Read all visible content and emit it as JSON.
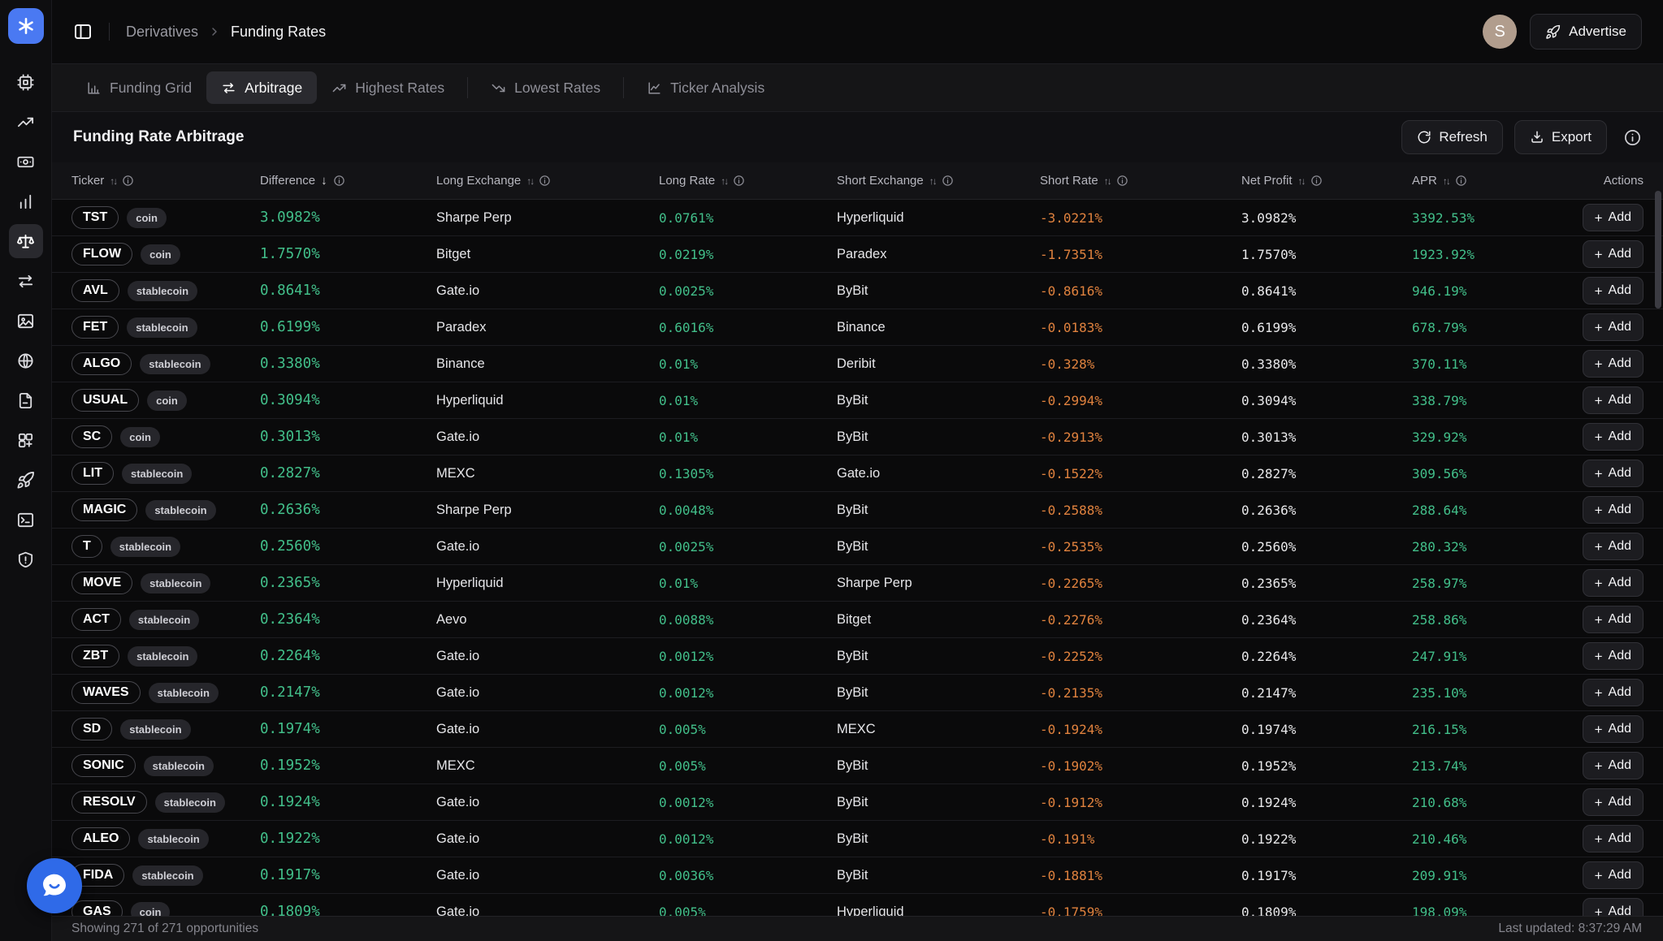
{
  "colors": {
    "accent_blue": "#4a79f2",
    "positive_green": "#42bf8a",
    "negative_orange": "#e0823e",
    "avatar_tan": "#b19d8d",
    "chat_blue": "#2f6ae8"
  },
  "header": {
    "breadcrumb": {
      "section": "Derivatives",
      "page": "Funding Rates"
    },
    "avatar_initial": "S",
    "advertise_label": "Advertise"
  },
  "sidebar": {
    "active": "scale-icon",
    "icons": [
      "cpu-icon",
      "trending-up-icon",
      "banknote-icon",
      "bar-chart-icon",
      "scale-icon",
      "swap-horizontal-icon",
      "image-icon",
      "globe-icon",
      "document-icon",
      "blocks-plus-icon",
      "rocket-icon",
      "terminal-icon",
      "shield-alert-icon"
    ]
  },
  "tabs": [
    {
      "label": "Funding Grid",
      "icon": "funding-grid-icon",
      "active": false,
      "divider_after": false
    },
    {
      "label": "Arbitrage",
      "icon": "arbitrage-swap-icon",
      "active": true,
      "divider_after": false
    },
    {
      "label": "Highest Rates",
      "icon": "trend-up-icon",
      "active": false,
      "divider_after": true
    },
    {
      "label": "Lowest Rates",
      "icon": "trend-down-icon",
      "active": false,
      "divider_after": true
    },
    {
      "label": "Ticker Analysis",
      "icon": "line-chart-icon",
      "active": false,
      "divider_after": false
    }
  ],
  "panel": {
    "title": "Funding Rate Arbitrage",
    "refresh_label": "Refresh",
    "export_label": "Export"
  },
  "table": {
    "columns": [
      {
        "label": "Ticker",
        "sort": "both",
        "info": true
      },
      {
        "label": "Difference",
        "sort": "desc",
        "info": true
      },
      {
        "label": "Long Exchange",
        "sort": "both",
        "info": true
      },
      {
        "label": "Long Rate",
        "sort": "both",
        "info": true
      },
      {
        "label": "Short Exchange",
        "sort": "both",
        "info": true
      },
      {
        "label": "Short Rate",
        "sort": "both",
        "info": true
      },
      {
        "label": "Net Profit",
        "sort": "both",
        "info": true
      },
      {
        "label": "APR",
        "sort": "both",
        "info": true
      },
      {
        "label": "Actions",
        "sort": "none",
        "info": false
      }
    ],
    "add_label": "Add",
    "rows": [
      {
        "ticker": "TST",
        "badge": "coin",
        "difference": "3.0982%",
        "long_exchange": "Sharpe Perp",
        "long_rate": "0.0761%",
        "short_exchange": "Hyperliquid",
        "short_rate": "-3.0221%",
        "net_profit": "3.0982%",
        "apr": "3392.53%"
      },
      {
        "ticker": "FLOW",
        "badge": "coin",
        "difference": "1.7570%",
        "long_exchange": "Bitget",
        "long_rate": "0.0219%",
        "short_exchange": "Paradex",
        "short_rate": "-1.7351%",
        "net_profit": "1.7570%",
        "apr": "1923.92%"
      },
      {
        "ticker": "AVL",
        "badge": "stablecoin",
        "difference": "0.8641%",
        "long_exchange": "Gate.io",
        "long_rate": "0.0025%",
        "short_exchange": "ByBit",
        "short_rate": "-0.8616%",
        "net_profit": "0.8641%",
        "apr": "946.19%"
      },
      {
        "ticker": "FET",
        "badge": "stablecoin",
        "difference": "0.6199%",
        "long_exchange": "Paradex",
        "long_rate": "0.6016%",
        "short_exchange": "Binance",
        "short_rate": "-0.0183%",
        "net_profit": "0.6199%",
        "apr": "678.79%"
      },
      {
        "ticker": "ALGO",
        "badge": "stablecoin",
        "difference": "0.3380%",
        "long_exchange": "Binance",
        "long_rate": "0.01%",
        "short_exchange": "Deribit",
        "short_rate": "-0.328%",
        "net_profit": "0.3380%",
        "apr": "370.11%"
      },
      {
        "ticker": "USUAL",
        "badge": "coin",
        "difference": "0.3094%",
        "long_exchange": "Hyperliquid",
        "long_rate": "0.01%",
        "short_exchange": "ByBit",
        "short_rate": "-0.2994%",
        "net_profit": "0.3094%",
        "apr": "338.79%"
      },
      {
        "ticker": "SC",
        "badge": "coin",
        "difference": "0.3013%",
        "long_exchange": "Gate.io",
        "long_rate": "0.01%",
        "short_exchange": "ByBit",
        "short_rate": "-0.2913%",
        "net_profit": "0.3013%",
        "apr": "329.92%"
      },
      {
        "ticker": "LIT",
        "badge": "stablecoin",
        "difference": "0.2827%",
        "long_exchange": "MEXC",
        "long_rate": "0.1305%",
        "short_exchange": "Gate.io",
        "short_rate": "-0.1522%",
        "net_profit": "0.2827%",
        "apr": "309.56%"
      },
      {
        "ticker": "MAGIC",
        "badge": "stablecoin",
        "difference": "0.2636%",
        "long_exchange": "Sharpe Perp",
        "long_rate": "0.0048%",
        "short_exchange": "ByBit",
        "short_rate": "-0.2588%",
        "net_profit": "0.2636%",
        "apr": "288.64%"
      },
      {
        "ticker": "T",
        "badge": "stablecoin",
        "difference": "0.2560%",
        "long_exchange": "Gate.io",
        "long_rate": "0.0025%",
        "short_exchange": "ByBit",
        "short_rate": "-0.2535%",
        "net_profit": "0.2560%",
        "apr": "280.32%"
      },
      {
        "ticker": "MOVE",
        "badge": "stablecoin",
        "difference": "0.2365%",
        "long_exchange": "Hyperliquid",
        "long_rate": "0.01%",
        "short_exchange": "Sharpe Perp",
        "short_rate": "-0.2265%",
        "net_profit": "0.2365%",
        "apr": "258.97%"
      },
      {
        "ticker": "ACT",
        "badge": "stablecoin",
        "difference": "0.2364%",
        "long_exchange": "Aevo",
        "long_rate": "0.0088%",
        "short_exchange": "Bitget",
        "short_rate": "-0.2276%",
        "net_profit": "0.2364%",
        "apr": "258.86%"
      },
      {
        "ticker": "ZBT",
        "badge": "stablecoin",
        "difference": "0.2264%",
        "long_exchange": "Gate.io",
        "long_rate": "0.0012%",
        "short_exchange": "ByBit",
        "short_rate": "-0.2252%",
        "net_profit": "0.2264%",
        "apr": "247.91%"
      },
      {
        "ticker": "WAVES",
        "badge": "stablecoin",
        "difference": "0.2147%",
        "long_exchange": "Gate.io",
        "long_rate": "0.0012%",
        "short_exchange": "ByBit",
        "short_rate": "-0.2135%",
        "net_profit": "0.2147%",
        "apr": "235.10%"
      },
      {
        "ticker": "SD",
        "badge": "stablecoin",
        "difference": "0.1974%",
        "long_exchange": "Gate.io",
        "long_rate": "0.005%",
        "short_exchange": "MEXC",
        "short_rate": "-0.1924%",
        "net_profit": "0.1974%",
        "apr": "216.15%"
      },
      {
        "ticker": "SONIC",
        "badge": "stablecoin",
        "difference": "0.1952%",
        "long_exchange": "MEXC",
        "long_rate": "0.005%",
        "short_exchange": "ByBit",
        "short_rate": "-0.1902%",
        "net_profit": "0.1952%",
        "apr": "213.74%"
      },
      {
        "ticker": "RESOLV",
        "badge": "stablecoin",
        "difference": "0.1924%",
        "long_exchange": "Gate.io",
        "long_rate": "0.0012%",
        "short_exchange": "ByBit",
        "short_rate": "-0.1912%",
        "net_profit": "0.1924%",
        "apr": "210.68%"
      },
      {
        "ticker": "ALEO",
        "badge": "stablecoin",
        "difference": "0.1922%",
        "long_exchange": "Gate.io",
        "long_rate": "0.0012%",
        "short_exchange": "ByBit",
        "short_rate": "-0.191%",
        "net_profit": "0.1922%",
        "apr": "210.46%"
      },
      {
        "ticker": "FIDA",
        "badge": "stablecoin",
        "difference": "0.1917%",
        "long_exchange": "Gate.io",
        "long_rate": "0.0036%",
        "short_exchange": "ByBit",
        "short_rate": "-0.1881%",
        "net_profit": "0.1917%",
        "apr": "209.91%"
      },
      {
        "ticker": "GAS",
        "badge": "coin",
        "difference": "0.1809%",
        "long_exchange": "Gate.io",
        "long_rate": "0.005%",
        "short_exchange": "Hyperliquid",
        "short_rate": "-0.1759%",
        "net_profit": "0.1809%",
        "apr": "198.09%"
      }
    ]
  },
  "footer": {
    "showing": "Showing 271 of 271 opportunities",
    "last_updated": "Last updated: 8:37:29 AM"
  }
}
